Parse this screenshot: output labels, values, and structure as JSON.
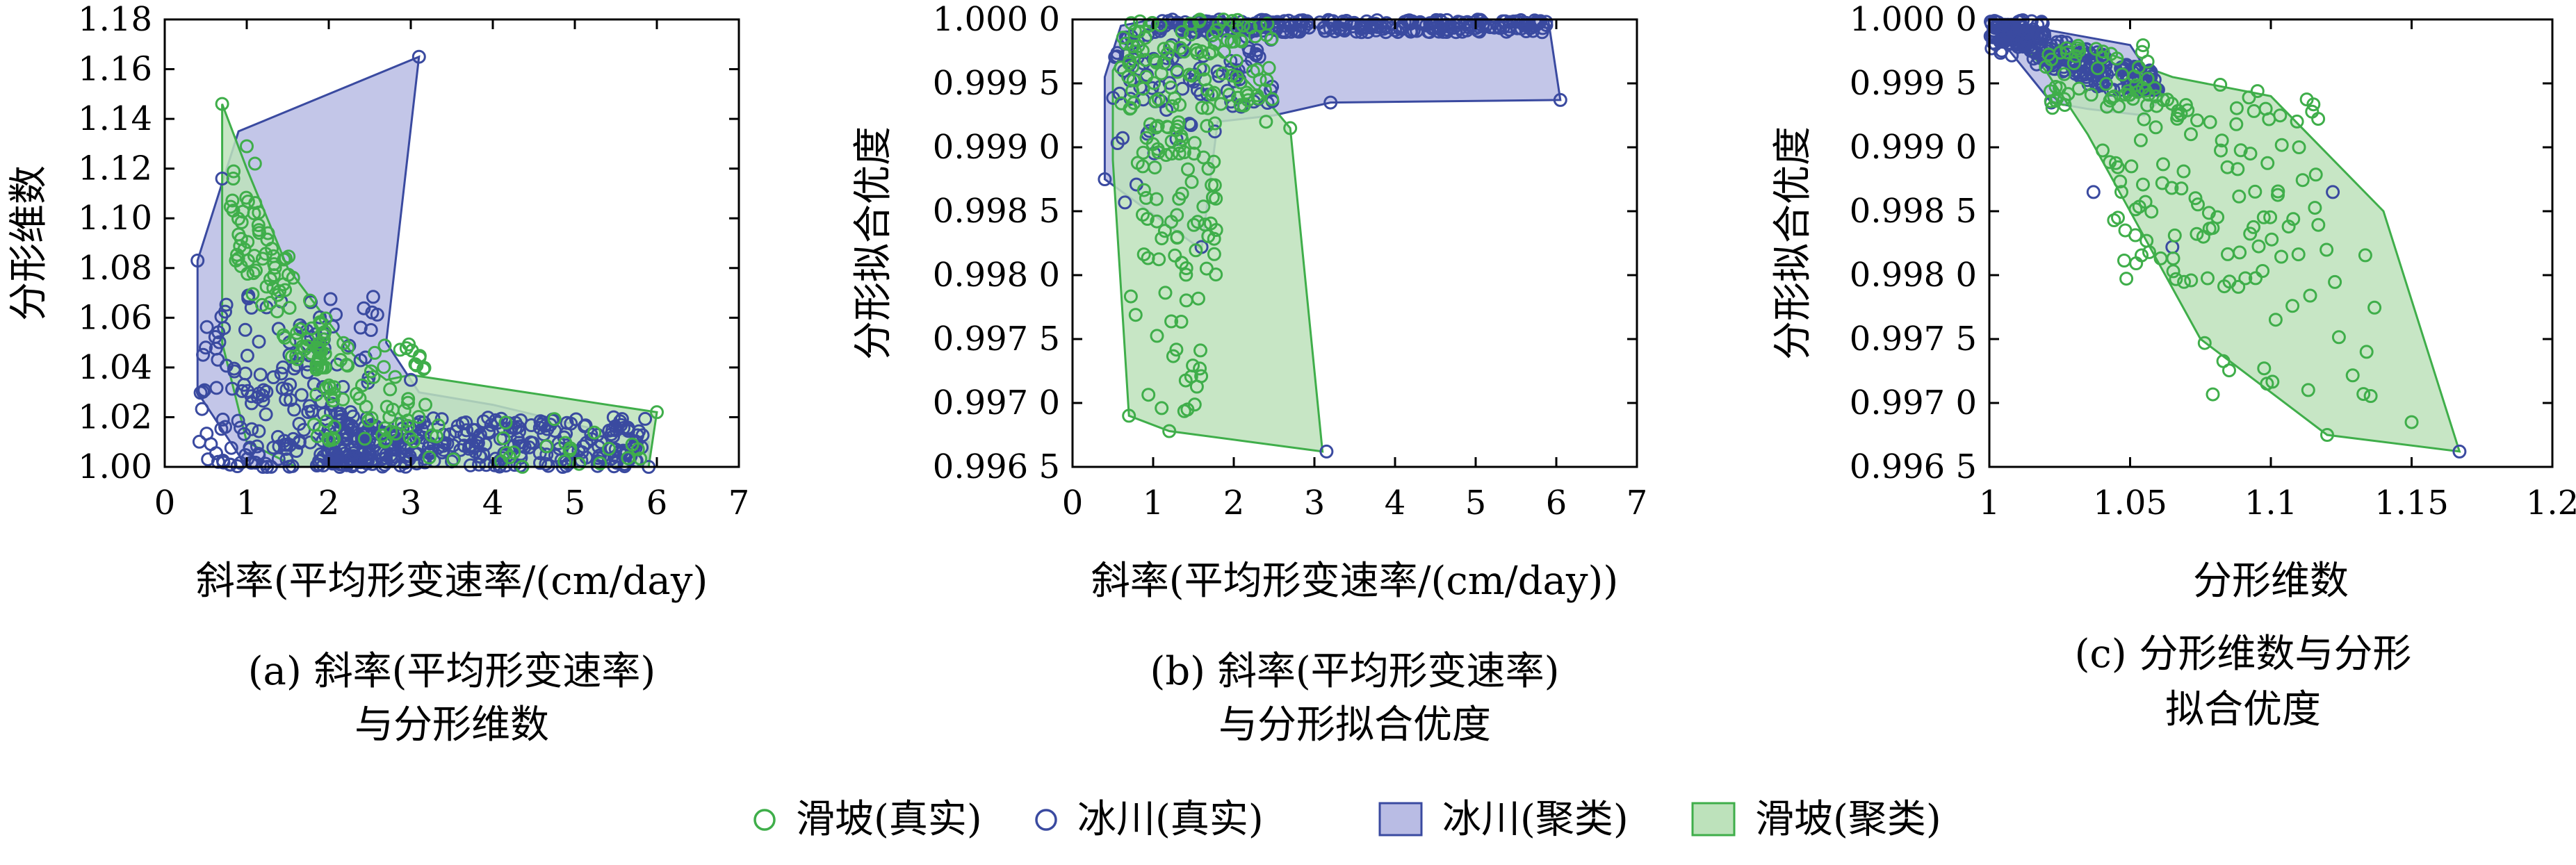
{
  "colors": {
    "glacier": "#3a4aa0",
    "landslide": "#3fae4a",
    "glacier_fill": "#b9bce4",
    "landslide_fill": "#bde2bb",
    "axis": "#000000"
  },
  "legend": {
    "items": [
      {
        "label": "滑坡(真实)",
        "kind": "marker",
        "color_key": "landslide"
      },
      {
        "label": "冰川(真实)",
        "kind": "marker",
        "color_key": "glacier"
      },
      {
        "label": "冰川(聚类)",
        "kind": "patch",
        "color_key": "glacier"
      },
      {
        "label": "滑坡(聚类)",
        "kind": "patch",
        "color_key": "landslide"
      }
    ]
  },
  "chart_data": [
    {
      "id": "a",
      "type": "scatter",
      "xlabel": "斜率(平均形变速率/(cm/day)",
      "ylabel": "分形维数",
      "caption": [
        "(a) 斜率(平均形变速率)",
        "与分形维数"
      ],
      "xlim": [
        0,
        7
      ],
      "ylim": [
        1.0,
        1.18
      ],
      "xticks": [
        0,
        1,
        2,
        3,
        4,
        5,
        6,
        7
      ],
      "xtick_labels": [
        "0",
        "1",
        "2",
        "3",
        "4",
        "5",
        "6",
        "7"
      ],
      "yticks": [
        1.0,
        1.02,
        1.04,
        1.06,
        1.08,
        1.1,
        1.12,
        1.14,
        1.16,
        1.18
      ],
      "ytick_labels": [
        "1.00",
        "1.02",
        "1.04",
        "1.06",
        "1.08",
        "1.10",
        "1.12",
        "1.14",
        "1.16",
        "1.18"
      ],
      "hulls": [
        {
          "name": "冰川(聚类)",
          "color_key": "glacier",
          "points": [
            [
              0.4,
              1.083
            ],
            [
              0.9,
              1.135
            ],
            [
              3.1,
              1.165
            ],
            [
              2.7,
              1.05
            ],
            [
              3.1,
              1.03
            ],
            [
              4.0,
              1.025
            ],
            [
              5.9,
              1.01
            ],
            [
              5.9,
              1.0
            ],
            [
              1.0,
              1.0
            ],
            [
              0.4,
              1.03
            ]
          ]
        },
        {
          "name": "滑坡(聚类)",
          "color_key": "landslide",
          "points": [
            [
              0.7,
              1.146
            ],
            [
              1.0,
              1.12
            ],
            [
              1.5,
              1.08
            ],
            [
              2.3,
              1.045
            ],
            [
              2.7,
              1.035
            ],
            [
              3.0,
              1.037
            ],
            [
              6.0,
              1.022
            ],
            [
              5.9,
              1.0
            ],
            [
              1.6,
              1.0
            ],
            [
              1.0,
              1.01
            ],
            [
              0.7,
              1.05
            ]
          ]
        }
      ],
      "series": [
        {
          "name": "冰川(真实)",
          "color_key": "glacier",
          "clusters": [
            {
              "x": [
                0.4,
                3.0
              ],
              "y": [
                1.0,
                1.065
              ],
              "n": 180,
              "decay": "x",
              "k": 2.2
            },
            {
              "x": [
                2.0,
                5.9
              ],
              "y": [
                1.0,
                1.02
              ],
              "n": 260
            },
            {
              "x": [
                0.6,
                2.6
              ],
              "y": [
                1.03,
                1.07
              ],
              "n": 60
            }
          ],
          "fixed": [
            [
              0.4,
              1.083
            ],
            [
              0.5,
              1.048
            ],
            [
              0.7,
              1.116
            ],
            [
              3.1,
              1.165
            ],
            [
              5.9,
              1.0
            ],
            [
              2.7,
              1.005
            ],
            [
              3.0,
              1.035
            ]
          ]
        },
        {
          "name": "滑坡(真实)",
          "color_key": "landslide",
          "clusters": [
            {
              "x": [
                0.8,
                2.0
              ],
              "y": [
                1.04,
                1.12
              ],
              "n": 90,
              "diag": true
            },
            {
              "x": [
                1.8,
                3.2
              ],
              "y": [
                1.01,
                1.05
              ],
              "n": 70
            },
            {
              "x": [
                3.0,
                5.8
              ],
              "y": [
                1.0,
                1.02
              ],
              "n": 25
            }
          ],
          "fixed": [
            [
              0.7,
              1.146
            ],
            [
              6.0,
              1.022
            ],
            [
              5.7,
              1.009
            ],
            [
              1.0,
              1.129
            ],
            [
              1.1,
              1.122
            ]
          ]
        }
      ]
    },
    {
      "id": "b",
      "type": "scatter",
      "xlabel": "斜率(平均形变速率/(cm/day))",
      "ylabel": "分形拟合优度",
      "caption": [
        "(b) 斜率(平均形变速率)",
        "与分形拟合优度"
      ],
      "xlim": [
        0,
        7
      ],
      "ylim": [
        0.9965,
        1.0
      ],
      "xticks": [
        0,
        1,
        2,
        3,
        4,
        5,
        6,
        7
      ],
      "xtick_labels": [
        "0",
        "1",
        "2",
        "3",
        "4",
        "5",
        "6",
        "7"
      ],
      "yticks": [
        0.9965,
        0.997,
        0.9975,
        0.998,
        0.9985,
        0.999,
        0.9995,
        1.0
      ],
      "ytick_labels": [
        "0.996 5",
        "0.997 0",
        "0.997 5",
        "0.998 0",
        "0.998 5",
        "0.999 0",
        "0.999 5",
        "1.000 0"
      ],
      "hulls": [
        {
          "name": "冰川(聚类)",
          "color_key": "glacier",
          "points": [
            [
              0.4,
              0.99955
            ],
            [
              0.6,
              0.99995
            ],
            [
              1.0,
              1.0
            ],
            [
              5.9,
              1.0
            ],
            [
              6.05,
              0.99937
            ],
            [
              3.2,
              0.99935
            ],
            [
              2.5,
              0.99925
            ],
            [
              1.8,
              0.9992
            ],
            [
              1.6,
              0.9982
            ],
            [
              0.4,
              0.99875
            ]
          ]
        },
        {
          "name": "滑坡(聚类)",
          "color_key": "landslide",
          "points": [
            [
              0.5,
              0.9996
            ],
            [
              0.8,
              0.99995
            ],
            [
              1.5,
              0.99995
            ],
            [
              2.5,
              0.9993
            ],
            [
              2.7,
              0.99915
            ],
            [
              3.1,
              0.99662
            ],
            [
              1.2,
              0.99678
            ],
            [
              0.7,
              0.9969
            ],
            [
              0.5,
              0.9989
            ]
          ]
        }
      ],
      "series": [
        {
          "name": "冰川(真实)",
          "color_key": "glacier",
          "clusters": [
            {
              "x": [
                1.0,
                5.9
              ],
              "y": [
                0.9999,
                1.0
              ],
              "n": 260
            },
            {
              "x": [
                0.5,
                2.5
              ],
              "y": [
                0.9993,
                0.99995
              ],
              "n": 80
            },
            {
              "x": [
                0.4,
                1.8
              ],
              "y": [
                0.9985,
                0.9993
              ],
              "n": 12
            }
          ],
          "fixed": [
            [
              6.05,
              0.99937
            ],
            [
              3.2,
              0.99935
            ],
            [
              3.15,
              0.99662
            ],
            [
              0.4,
              0.99875
            ],
            [
              1.6,
              0.99822
            ]
          ]
        },
        {
          "name": "滑坡(真实)",
          "color_key": "landslide",
          "clusters": [
            {
              "x": [
                0.6,
                2.5
              ],
              "y": [
                0.9993,
                1.0
              ],
              "n": 110
            },
            {
              "x": [
                0.8,
                1.8
              ],
              "y": [
                0.998,
                0.9992
              ],
              "n": 70
            },
            {
              "x": [
                0.7,
                1.6
              ],
              "y": [
                0.9968,
                0.998
              ],
              "n": 22
            }
          ],
          "fixed": [
            [
              2.7,
              0.99915
            ],
            [
              1.2,
              0.99678
            ],
            [
              0.7,
              0.9969
            ],
            [
              2.4,
              0.9992
            ]
          ]
        }
      ]
    },
    {
      "id": "c",
      "type": "scatter",
      "xlabel": "分形维数",
      "ylabel": "分形拟合优度",
      "caption": [
        "(c) 分形维数与分形",
        "拟合优度"
      ],
      "xlim": [
        1.0,
        1.2
      ],
      "ylim": [
        0.9965,
        1.0
      ],
      "xticks": [
        1.0,
        1.05,
        1.1,
        1.15,
        1.2
      ],
      "xtick_labels": [
        "1",
        "1.05",
        "1.1",
        "1.15",
        "1.2"
      ],
      "yticks": [
        0.9965,
        0.997,
        0.9975,
        0.998,
        0.9985,
        0.999,
        0.9995,
        1.0
      ],
      "ytick_labels": [
        "0.996 5",
        "0.997 0",
        "0.997 5",
        "0.998 0",
        "0.998 5",
        "0.999 0",
        "0.999 5",
        "1.000 0"
      ],
      "hulls": [
        {
          "name": "冰川(聚类)",
          "color_key": "glacier",
          "points": [
            [
              1.0,
              1.0
            ],
            [
              1.05,
              0.9998
            ],
            [
              1.062,
              0.9994
            ],
            [
              1.055,
              0.99925
            ],
            [
              1.035,
              0.9993
            ],
            [
              1.022,
              0.99935
            ],
            [
              1.0,
              0.99995
            ]
          ]
        },
        {
          "name": "滑坡(聚类)",
          "color_key": "landslide",
          "points": [
            [
              1.01,
              0.99985
            ],
            [
              1.04,
              0.99975
            ],
            [
              1.065,
              0.99955
            ],
            [
              1.1,
              0.9994
            ],
            [
              1.14,
              0.9985
            ],
            [
              1.167,
              0.99662
            ],
            [
              1.12,
              0.99675
            ],
            [
              1.075,
              0.9975
            ],
            [
              1.035,
              0.9991
            ],
            [
              1.02,
              0.9996
            ]
          ]
        }
      ],
      "series": [
        {
          "name": "冰川(真实)",
          "color_key": "glacier",
          "clusters": [
            {
              "x": [
                1.0,
                1.06
              ],
              "y": [
                0.99945,
                1.0
              ],
              "n": 220,
              "diag": true
            },
            {
              "x": [
                1.0,
                1.02
              ],
              "y": [
                0.9998,
                1.0
              ],
              "n": 60
            }
          ],
          "fixed": [
            [
              1.022,
              0.99935
            ],
            [
              1.037,
              0.99865
            ],
            [
              1.065,
              0.99822
            ],
            [
              1.122,
              0.99865
            ],
            [
              1.167,
              0.99662
            ]
          ]
        },
        {
          "name": "滑坡(真实)",
          "color_key": "landslide",
          "clusters": [
            {
              "x": [
                1.02,
                1.06
              ],
              "y": [
                0.9993,
                0.9998
              ],
              "n": 50
            },
            {
              "x": [
                1.04,
                1.12
              ],
              "y": [
                0.9979,
                0.9995
              ],
              "n": 110
            },
            {
              "x": [
                1.07,
                1.14
              ],
              "y": [
                0.9969,
                0.9982
              ],
              "n": 22
            }
          ],
          "fixed": [
            [
              1.12,
              0.99675
            ],
            [
              1.15,
              0.99685
            ],
            [
              1.134,
              0.9974
            ],
            [
              1.11,
              0.999
            ]
          ]
        }
      ]
    }
  ]
}
